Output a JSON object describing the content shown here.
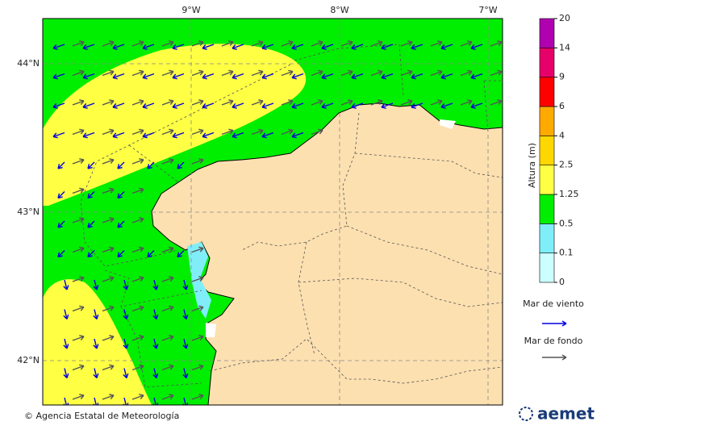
{
  "map": {
    "lon_labels": [
      "9°W",
      "8°W",
      "7°W"
    ],
    "lat_labels": [
      "44°N",
      "43°N",
      "42°N"
    ]
  },
  "legend": {
    "title": "Altura (m)",
    "levels": [
      0,
      0.1,
      0.5,
      1.25,
      2.5,
      4,
      6,
      9,
      14,
      20
    ],
    "colors": [
      "#ccffff",
      "#80eef8",
      "#00ee00",
      "#ffff44",
      "#ffd700",
      "#ffaa00",
      "#ff0000",
      "#e8006a",
      "#b000b0"
    ],
    "wind_sea": {
      "label": "Mar de viento",
      "color": "#0000dd"
    },
    "swell": {
      "label": "Mar de fondo",
      "color": "#555555"
    }
  },
  "footer": {
    "credit": "© Agencia Estatal de Meteorología",
    "logo": "aemet"
  }
}
